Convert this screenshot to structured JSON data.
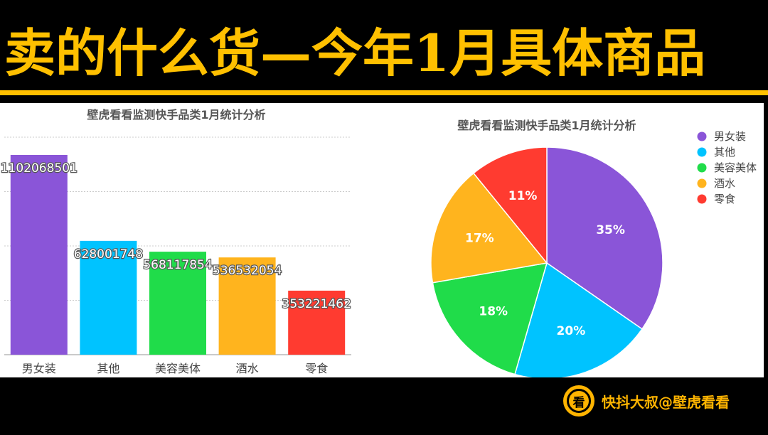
{
  "header": {
    "title": "卖的什么货—今年1月具体商品"
  },
  "watermark": {
    "logo_glyph": "看",
    "text": "快抖大叔@壁虎看看"
  },
  "colors": {
    "accent": "#ffc000",
    "male_female_clothing": "#8a55d8",
    "other": "#00c3ff",
    "beauty": "#20dc4a",
    "liquor": "#ffb41e",
    "snacks": "#ff3b30"
  },
  "chart_data": [
    {
      "type": "bar",
      "title": "壁虎看看监测快手品类1月统计分析",
      "categories": [
        "男女装",
        "其他",
        "美容美体",
        "酒水",
        "零食"
      ],
      "values": [
        1102068501,
        628001748,
        568117854,
        536532054,
        353221462
      ],
      "value_labels": [
        "1102068501",
        "628001748",
        "568117854",
        "536532054",
        "353221462"
      ],
      "colors": [
        "#8a55d8",
        "#00c3ff",
        "#20dc4a",
        "#ffb41e",
        "#ff3b30"
      ],
      "ylim": [
        0,
        1200000000
      ],
      "gridlines": [
        0,
        300000000,
        600000000,
        900000000,
        1200000000
      ],
      "grid": true,
      "xlabel": "",
      "ylabel": ""
    },
    {
      "type": "pie",
      "title": "壁虎看看监测快手品类1月统计分析",
      "labels": [
        "男女装",
        "其他",
        "美容美体",
        "酒水",
        "零食"
      ],
      "values": [
        35,
        20,
        18,
        17,
        11
      ],
      "value_labels": [
        "35%",
        "20%",
        "18%",
        "17%",
        "11%"
      ],
      "colors": [
        "#8a55d8",
        "#00c3ff",
        "#20dc4a",
        "#ffb41e",
        "#ff3b30"
      ],
      "legend": "right"
    }
  ]
}
